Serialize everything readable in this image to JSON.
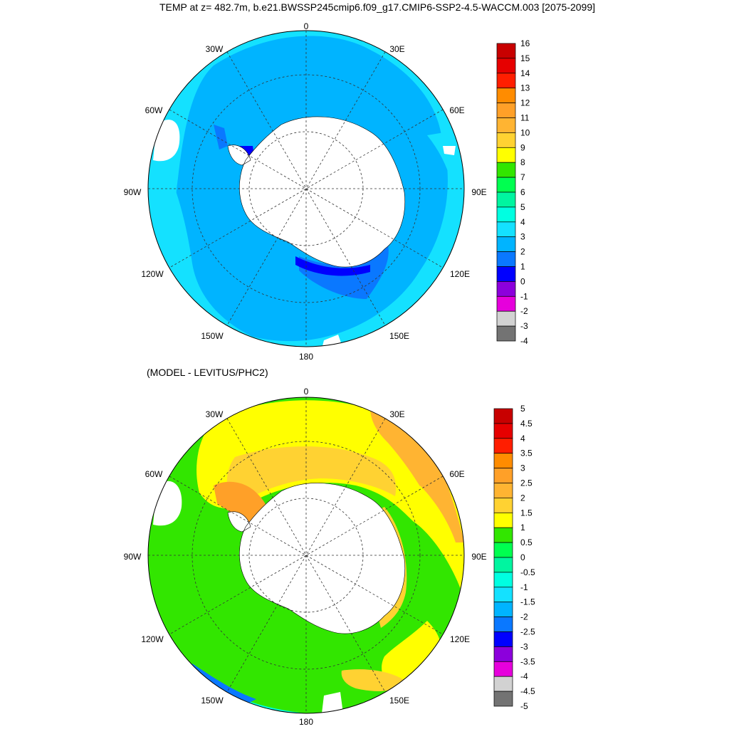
{
  "title": "TEMP at z= 482.7m, b.e21.BWSSP245cmip6.f09_g17.CMIP6-SSP2-4.5-WACCM.003 [2075-2099]",
  "subtitle": "(MODEL - LEVITUS/PHC2)",
  "longitude_labels": [
    "0",
    "30E",
    "60E",
    "90E",
    "120E",
    "150E",
    "180",
    "150W",
    "120W",
    "90W",
    "60W",
    "30W"
  ],
  "panels": [
    {
      "name": "temperature",
      "colorbar": {
        "labels": [
          "16",
          "15",
          "14",
          "13",
          "12",
          "11",
          "10",
          "9",
          "8",
          "7",
          "6",
          "5",
          "4",
          "3",
          "2",
          "1",
          "0",
          "-1",
          "-2",
          "-3",
          "-4"
        ],
        "colors": [
          "#c80000",
          "#e60000",
          "#ff1e00",
          "#ff8c00",
          "#ffa028",
          "#ffb432",
          "#ffd232",
          "#ffff00",
          "#32e600",
          "#00ff50",
          "#00f5a0",
          "#00ffe1",
          "#14e1ff",
          "#00b4ff",
          "#0a78ff",
          "#0000ff",
          "#8c00dc",
          "#e600dc",
          "#d2d2d2",
          "#737373"
        ]
      }
    },
    {
      "name": "difference",
      "colorbar": {
        "labels": [
          "5",
          "4.5",
          "4",
          "3.5",
          "3",
          "2.5",
          "2",
          "1.5",
          "1",
          "0.5",
          "0",
          "-0.5",
          "-1",
          "-1.5",
          "-2",
          "-2.5",
          "-3",
          "-3.5",
          "-4",
          "-4.5",
          "-5"
        ],
        "colors": [
          "#c80000",
          "#e60000",
          "#ff1e00",
          "#ff8c00",
          "#ffa028",
          "#ffb432",
          "#ffd232",
          "#ffff00",
          "#32e600",
          "#00ff50",
          "#00f5a0",
          "#00ffe1",
          "#14e1ff",
          "#00b4ff",
          "#0a78ff",
          "#0000ff",
          "#8c00dc",
          "#e600dc",
          "#d2d2d2",
          "#737373"
        ]
      }
    }
  ]
}
